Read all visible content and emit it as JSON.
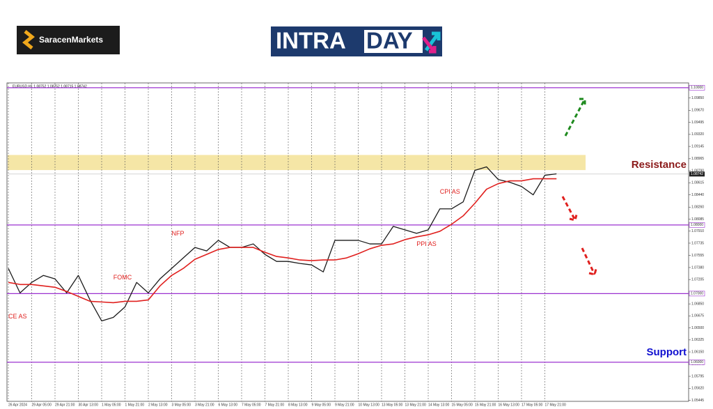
{
  "header": {
    "brand": "SaracenMarkets",
    "logo_left": "INTRA",
    "logo_right": "DAY"
  },
  "chart_data": {
    "type": "line",
    "title": "EURUSD,H1 1.08752 1.08752 1.08715 1.08742",
    "categories": [
      "26 Apr 2024",
      null,
      "29 Apr 05:00",
      null,
      "29 Apr 21:00",
      null,
      "30 Apr 13:00",
      null,
      "1 May 05:00",
      null,
      "1 May 21:00",
      null,
      "2 May 13:00",
      null,
      "3 May 05:00",
      null,
      "3 May 21:00",
      null,
      "6 May 13:00",
      null,
      "7 May 05:00",
      null,
      "7 May 21:00",
      null,
      "8 May 13:00",
      null,
      "9 May 05:00",
      null,
      "9 May 21:00",
      null,
      "10 May 13:00",
      null,
      "13 May 05:00",
      null,
      "13 May 21:00",
      null,
      "14 May 13:00",
      null,
      "15 May 05:00",
      null,
      "15 May 21:00",
      null,
      "16 May 13:00",
      null,
      "17 May 05:00",
      null,
      "17 May 21:00",
      null
    ],
    "series": [
      {
        "name": "EURUSD",
        "color": "#1a1a1a",
        "values": [
          1.07367,
          1.0701,
          1.07163,
          1.07265,
          1.07214,
          1.0701,
          1.07265,
          1.06908,
          1.06602,
          1.06653,
          1.06806,
          1.07163,
          1.0701,
          1.07214,
          1.07367,
          1.0752,
          1.07673,
          1.07622,
          1.07776,
          1.07673,
          1.07673,
          1.07724,
          1.07571,
          1.07469,
          1.07469,
          1.07439,
          1.07418,
          1.07316,
          1.07776,
          1.07776,
          1.07776,
          1.07724,
          1.07724,
          1.0798,
          1.07929,
          1.07878,
          1.07929,
          1.08235,
          1.08235,
          1.08337,
          1.08796,
          1.08847,
          1.08663,
          1.08622,
          1.08561,
          1.08439,
          1.08724,
          1.08745
        ]
      },
      {
        "name": "MA",
        "color": "#e0201e",
        "values": [
          1.07163,
          1.07133,
          1.07133,
          1.07112,
          1.07092,
          1.07031,
          1.06959,
          1.06888,
          1.06878,
          1.06867,
          1.06888,
          1.06888,
          1.06908,
          1.07112,
          1.07265,
          1.07367,
          1.075,
          1.07571,
          1.07643,
          1.07673,
          1.07673,
          1.07673,
          1.07602,
          1.07541,
          1.0752,
          1.0749,
          1.0748,
          1.0749,
          1.0749,
          1.0752,
          1.07581,
          1.07653,
          1.07704,
          1.07724,
          1.07786,
          1.07827,
          1.07857,
          1.07908,
          1.0801,
          1.08133,
          1.08316,
          1.08521,
          1.08602,
          1.08643,
          1.08643,
          1.08673,
          1.08673,
          1.08673
        ]
      }
    ],
    "ylim": [
      1.0543,
      1.1007
    ],
    "yticks": [
      {
        "value": 1.0985,
        "label": "1.09850"
      },
      {
        "value": 1.0967,
        "label": "1.09670"
      },
      1.09495,
      {
        "value": 1.0932,
        "label": "1.09320"
      },
      1.09145,
      1.08965,
      {
        "value": 1.0879,
        "label": "1.08790"
      },
      1.08615,
      {
        "value": 1.0844,
        "label": "1.08440"
      },
      {
        "value": 1.0826,
        "label": "1.08260"
      },
      1.08085,
      {
        "value": 1.0791,
        "label": "1.07910"
      },
      1.07735,
      1.07555,
      {
        "value": 1.0738,
        "label": "1.07380"
      },
      1.07205,
      {
        "value": 1.0685,
        "label": "1.06850"
      },
      1.06675,
      {
        "value": 1.065,
        "label": "1.06500"
      },
      1.06325,
      {
        "value": 1.0615,
        "label": "1.06150"
      },
      {
        "value": 1.0597,
        "label": "1.05970"
      },
      1.05795,
      {
        "value": 1.0562,
        "label": "1.05620"
      },
      1.05445
    ],
    "levels": [
      {
        "value": 1.1,
        "label": "1.10000"
      },
      {
        "value": 1.08,
        "label": "1.08000"
      },
      {
        "value": 1.07,
        "label": "1.07000"
      },
      {
        "value": 1.06,
        "label": "1.06000"
      }
    ],
    "current_price": {
      "value": 1.08742,
      "label": "1.08742"
    },
    "resistance_zone": [
      1.088,
      1.0902
    ],
    "grid": true,
    "annotations": [
      {
        "text": "CE AS",
        "index": 0,
        "value": 1.0666
      },
      {
        "text": "FOMC",
        "index": 9,
        "value": 1.0723
      },
      {
        "text": "NFP",
        "index": 14,
        "value": 1.0787
      },
      {
        "text": "PPI AS",
        "index": 35,
        "value": 1.0772
      },
      {
        "text": "CPI AS",
        "index": 37,
        "value": 1.0848
      }
    ],
    "resistance_label": "Resistance",
    "support_label": "Support"
  }
}
